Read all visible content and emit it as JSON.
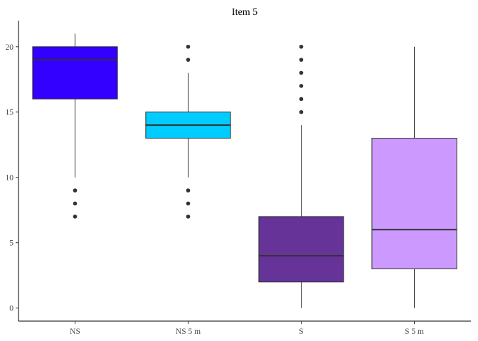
{
  "chart_data": {
    "type": "boxplot",
    "title": "Item 5",
    "xlabel": "",
    "ylabel": "",
    "ylim": [
      -1,
      22
    ],
    "y_ticks": [
      0,
      5,
      10,
      15,
      20
    ],
    "grid": false,
    "legend": "none",
    "categories": [
      "NS",
      "NS 5 m",
      "S",
      "S 5 m"
    ],
    "boxes": [
      {
        "category": "NS",
        "whisker_low": 10,
        "q1": 16,
        "median": 19,
        "q3": 20,
        "whisker_high": 21,
        "outliers": [
          9,
          8,
          7
        ],
        "color": "#3300FF"
      },
      {
        "category": "NS 5 m",
        "whisker_low": 10,
        "q1": 13,
        "median": 14,
        "q3": 15,
        "whisker_high": 18,
        "outliers": [
          20,
          19,
          9,
          8,
          7
        ],
        "color": "#00CCFF"
      },
      {
        "category": "S",
        "whisker_low": 0,
        "q1": 2,
        "median": 4,
        "q3": 7,
        "whisker_high": 14,
        "outliers": [
          20,
          19,
          18,
          17,
          16,
          15
        ],
        "color": "#663399"
      },
      {
        "category": "S 5 m",
        "whisker_low": 0,
        "q1": 3,
        "median": 6,
        "q3": 13,
        "whisker_high": 20,
        "outliers": [],
        "color": "#CC99FF"
      }
    ]
  }
}
